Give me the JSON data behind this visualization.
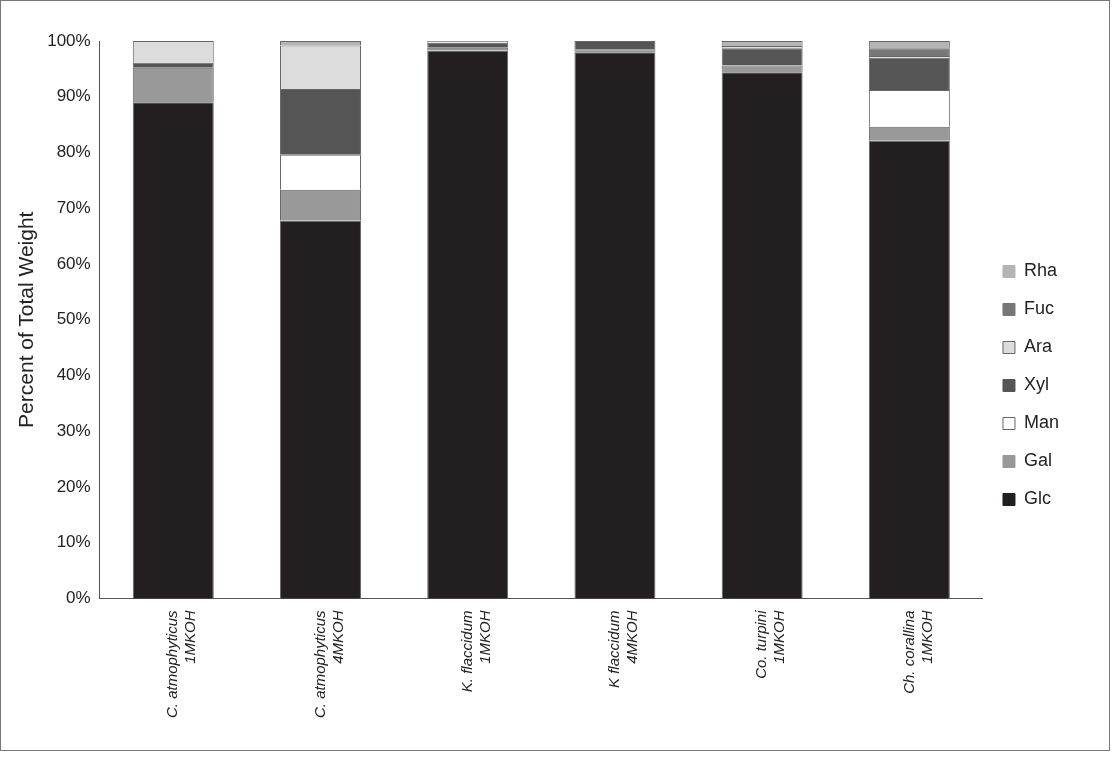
{
  "chart_data": {
    "type": "bar",
    "stacked": true,
    "ylabel": "Percent of Total Weight",
    "categories": [
      "C. atmophyticus\n1MKOH",
      "C. atmophyticus\n4MKOH",
      "K. flaccidum\n1MKOH",
      "K flaccidum\n4MKOH",
      "Co. turpini\n1MKOH",
      "Ch. corallina\n1MKOH"
    ],
    "series": [
      {
        "name": "Glc",
        "color": "#231f20",
        "values": [
          89,
          67.8,
          98.3,
          98,
          94.4,
          82.1
        ]
      },
      {
        "name": "Gal",
        "color": "#999999",
        "values": [
          6.2,
          5.5,
          0.5,
          0.5,
          1.2,
          2.5
        ]
      },
      {
        "name": "Man",
        "color": "#ffffff",
        "values": [
          0,
          6.3,
          0,
          0,
          0,
          6.6
        ]
      },
      {
        "name": "Xyl",
        "color": "#555555",
        "values": [
          0.9,
          11.8,
          0.9,
          1.5,
          3.1,
          5.8
        ]
      },
      {
        "name": "Ara",
        "color": "#dcdcdc",
        "values": [
          3.9,
          7.8,
          0.3,
          0,
          0.4,
          0.3
        ]
      },
      {
        "name": "Fuc",
        "color": "#777777",
        "values": [
          0,
          0,
          0,
          0,
          0,
          1.4
        ]
      },
      {
        "name": "Rha",
        "color": "#b4b4b4",
        "values": [
          0,
          0.8,
          0,
          0,
          0.9,
          1.3
        ]
      }
    ],
    "ylim": [
      0,
      100
    ],
    "yticks": [
      {
        "value": 0,
        "label": "0%"
      },
      {
        "value": 10,
        "label": "10%"
      },
      {
        "value": 20,
        "label": "20%"
      },
      {
        "value": 30,
        "label": "30%"
      },
      {
        "value": 40,
        "label": "40%"
      },
      {
        "value": 50,
        "label": "50%"
      },
      {
        "value": 60,
        "label": "60%"
      },
      {
        "value": 70,
        "label": "70%"
      },
      {
        "value": 80,
        "label": "80%"
      },
      {
        "value": 90,
        "label": "90%"
      },
      {
        "value": 100,
        "label": "100%"
      }
    ],
    "grid": false,
    "legend": "right"
  }
}
